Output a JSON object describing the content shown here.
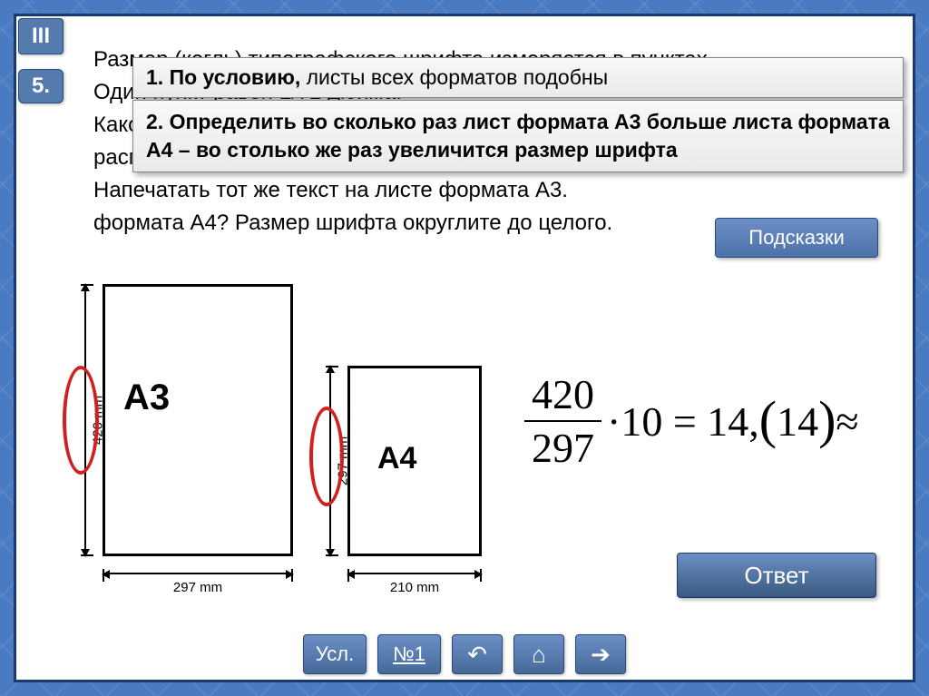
{
  "badges": {
    "roman": "III",
    "number": "5."
  },
  "problem": {
    "line1": "Размер (кегль) типографского шрифта измеряется в пунктах.",
    "line2": "Один пункт равен 1/72 дюйма.",
    "line3": "Каков размер шрифта, если текст занимает всю страницу и",
    "line4": "располагается на листе формата А4?",
    "line5": "Напечатать тот же текст на листе формата А3.",
    "line6": "формата А4? Размер шрифта округлите до целого."
  },
  "hints": {
    "h1_bold": "1. По условию,",
    "h1_rest": " листы всех форматов подобны",
    "h2": "2. Определить во сколько раз лист формата А3 больше листа формата А4 – во столько же раз увеличится размер шрифта"
  },
  "hints_button": "Подсказки",
  "diagram": {
    "a3": {
      "label": "A3",
      "height_mm": "420 mm",
      "width_mm": "297 mm"
    },
    "a4": {
      "label": "A4",
      "height_mm": "297 mm",
      "width_mm": "210 mm"
    },
    "ellipse_color": "#d02020",
    "sheet_border": "#000000"
  },
  "formula": {
    "numerator": "420",
    "denominator": "297",
    "times": "·10 = 14,",
    "paren_num": "14",
    "approx": "≈"
  },
  "answer_button": "Ответ",
  "nav": {
    "usl": "Усл.",
    "no1": "№1",
    "back_icon": "↶",
    "home_icon": "⌂",
    "next_icon": "➔"
  },
  "colors": {
    "btn_bg_top": "#6b8fc4",
    "btn_bg_bot": "#456a9a",
    "frame_border": "#1a3a6e",
    "page_bg": "#4a7bc0"
  }
}
